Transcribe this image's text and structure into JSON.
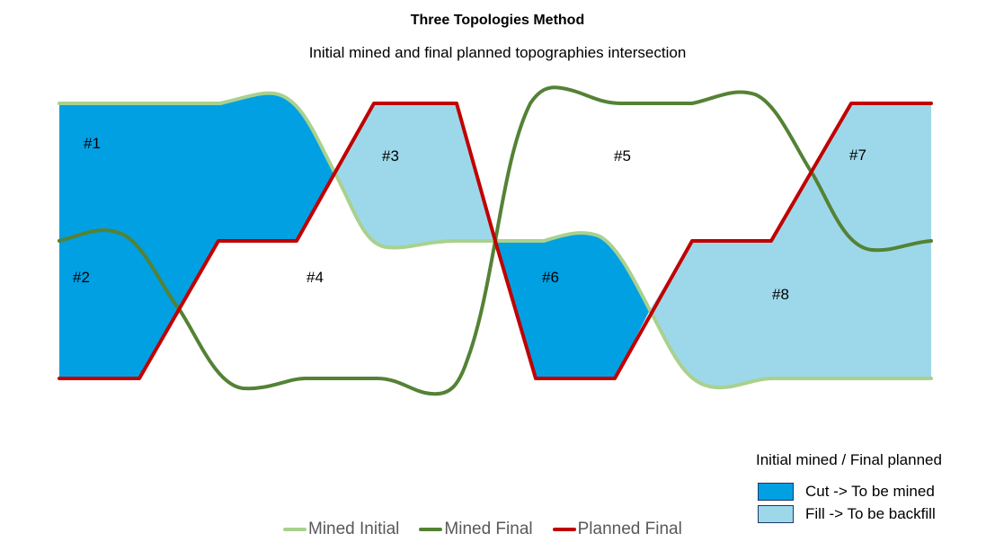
{
  "title": "Three Topologies Method",
  "subtitle": "Initial mined and final planned topographies intersection",
  "colors": {
    "cut": "#00A0E3",
    "fill": "#9DD8EA",
    "mined_initial": "#A9D18E",
    "mined_final": "#548235",
    "planned_final": "#C00000"
  },
  "regions": {
    "r1": "#1",
    "r2": "#2",
    "r3": "#3",
    "r4": "#4",
    "r5": "#5",
    "r6": "#6",
    "r7": "#7",
    "r8": "#8"
  },
  "legend": {
    "mined_initial": "Mined Initial",
    "mined_final": "Mined Final",
    "planned_final": "Planned Final"
  },
  "key": {
    "title": "Initial mined / Final planned",
    "cut_label": "Cut -> To be mined",
    "fill_label": "Fill -> To be backfill"
  }
}
